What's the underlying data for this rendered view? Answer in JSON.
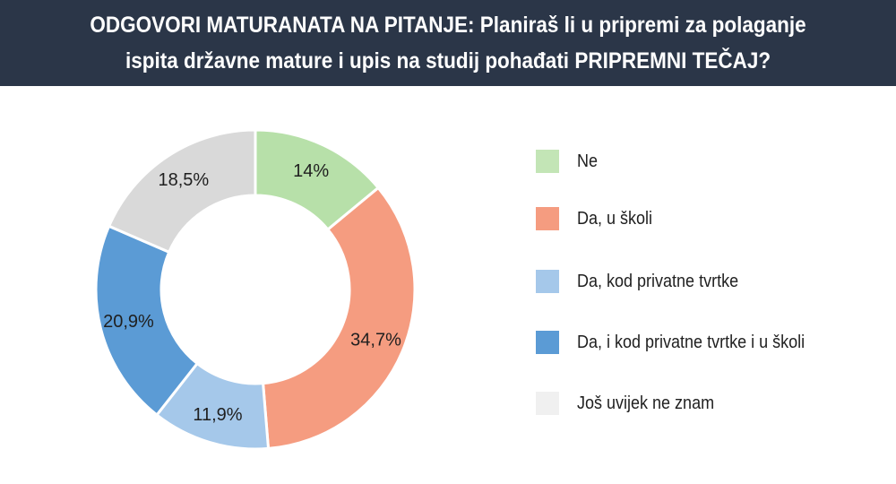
{
  "header": {
    "title_line1": "ODGOVORI MATURANATA NA PITANJE: Planiraš li u pripremi za polaganje",
    "title_line2": "ispita državne mature i upis na studij pohađati PRIPREMNI TEČAJ?"
  },
  "chart_data": {
    "type": "pie",
    "subtype": "donut",
    "title": "ODGOVORI MATURANATA NA PITANJE: Planiraš li u pripremi za polaganje ispita državne mature i upis na studij pohađati PRIPREMNI TEČAJ?",
    "legend_position": "right",
    "slices": [
      {
        "name": "Ne",
        "value": 14,
        "label": "14%",
        "color": "#b7e0a9"
      },
      {
        "name": "Da, u školi",
        "value": 34.7,
        "label": "34,7%",
        "color": "#f59c80"
      },
      {
        "name": "Da, kod privatne tvrtke",
        "value": 11.9,
        "label": "11,9%",
        "color": "#a5c8ea"
      },
      {
        "name": "Da, i kod privatne tvrtke i u školi",
        "value": 20.9,
        "label": "20,9%",
        "color": "#5b9bd5"
      },
      {
        "name": "Još uvijek ne znam",
        "value": 18.5,
        "label": "18,5%",
        "color": "#d9d9d9"
      }
    ]
  },
  "legend": {
    "items": [
      {
        "label": "Ne",
        "color": "#c3e5b6"
      },
      {
        "label": "Da, u školi",
        "color": "#f59c80"
      },
      {
        "label": "Da, kod privatne tvrtke",
        "color": "#a5c8ea"
      },
      {
        "label": "Da, i kod privatne tvrtke i u školi",
        "color": "#5b9bd5"
      },
      {
        "label": "Još uvijek ne znam",
        "color": "#f0f0f0"
      }
    ]
  }
}
